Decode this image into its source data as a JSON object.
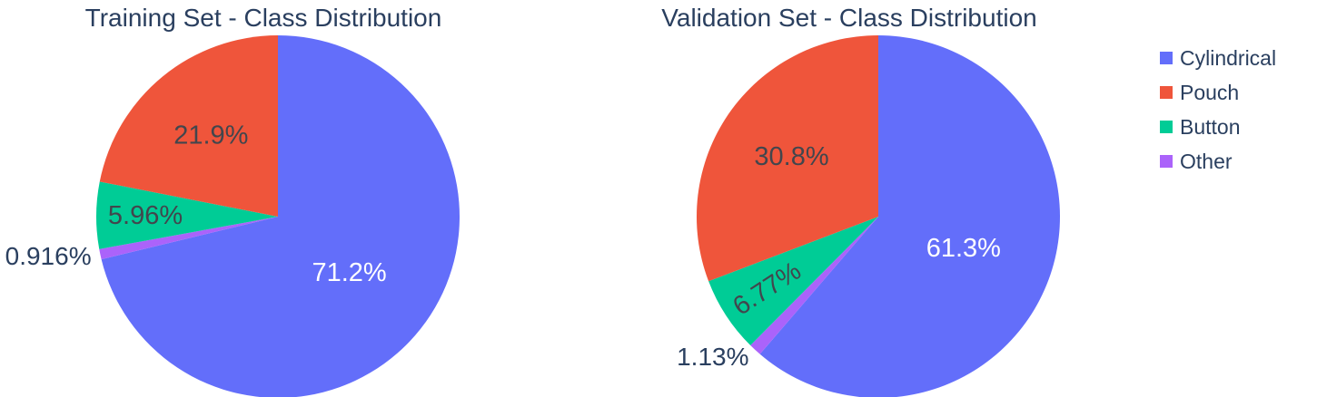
{
  "figure": {
    "background": "#ffffff",
    "text_colors": {
      "title": "#2a3f5f",
      "legend": "#2a3f5f",
      "label_inside_light": "#ffffff",
      "label_inside_dark": "#42464d",
      "label_outside": "#2a3f5f"
    }
  },
  "chart_data": [
    {
      "type": "pie",
      "title": "Training Set - Class Distribution",
      "labels": [
        "Cylindrical",
        "Pouch",
        "Button",
        "Other"
      ],
      "values": [
        71.2,
        21.9,
        5.96,
        0.916
      ],
      "display_values": [
        "71.2%",
        "21.9%",
        "5.96%",
        "0.916%"
      ],
      "colors": [
        "#636EFA",
        "#EF553B",
        "#00CC96",
        "#AB63FA"
      ],
      "clockwise_order_from_top": [
        "Cylindrical",
        "Other",
        "Button",
        "Pouch"
      ],
      "units": "percent",
      "legend_position": "right"
    },
    {
      "type": "pie",
      "title": "Validation Set - Class Distribution",
      "labels": [
        "Cylindrical",
        "Pouch",
        "Button",
        "Other"
      ],
      "values": [
        61.3,
        30.8,
        6.77,
        1.13
      ],
      "display_values": [
        "61.3%",
        "30.8%",
        "6.77%",
        "1.13%"
      ],
      "colors": [
        "#636EFA",
        "#EF553B",
        "#00CC96",
        "#AB63FA"
      ],
      "clockwise_order_from_top": [
        "Cylindrical",
        "Other",
        "Button",
        "Pouch"
      ],
      "units": "percent",
      "legend_position": "right"
    }
  ],
  "legend": {
    "items": [
      {
        "label": "Cylindrical",
        "color": "#636EFA"
      },
      {
        "label": "Pouch",
        "color": "#EF553B"
      },
      {
        "label": "Button",
        "color": "#00CC96"
      },
      {
        "label": "Other",
        "color": "#AB63FA"
      }
    ]
  }
}
